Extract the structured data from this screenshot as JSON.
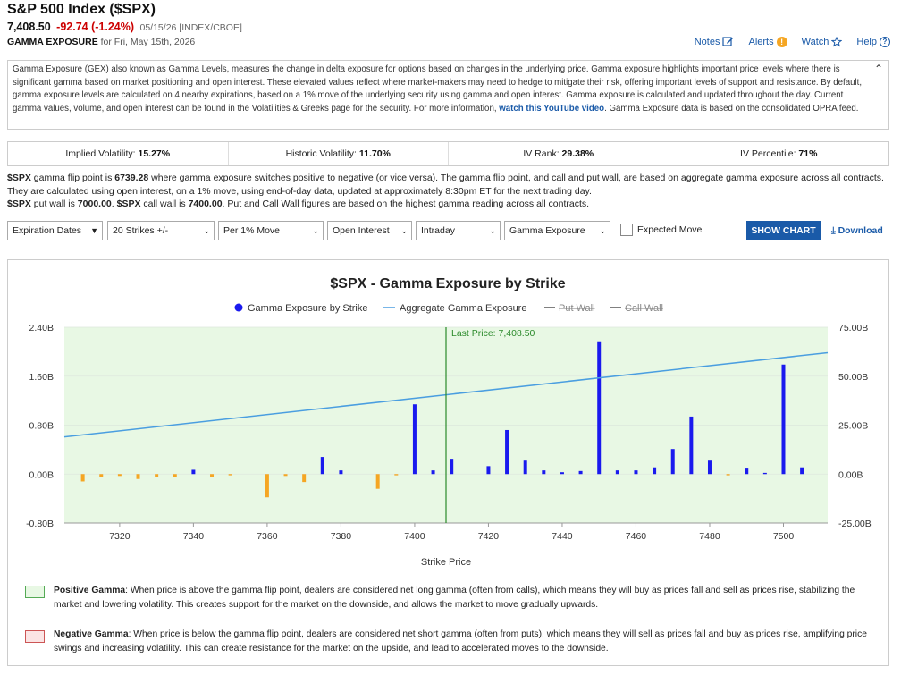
{
  "header": {
    "title": "S&P 500 Index ($SPX)",
    "price": "7,408.50",
    "change": "-92.74 (-1.24%)",
    "meta": "05/15/26 [INDEX/CBOE]",
    "subtitle_bold": "GAMMA EXPOSURE",
    "subtitle_rest": " for Fri, May 15th, 2026"
  },
  "links": {
    "notes": "Notes",
    "alerts": "Alerts",
    "watch": "Watch",
    "help": "Help"
  },
  "description": {
    "text1": "Gamma Exposure (GEX) also known as Gamma Levels, measures the change in delta exposure for options based on changes in the underlying price. Gamma exposure highlights important price levels where there is significant gamma based on market positioning and open interest. These elevated values reflect where market-makers may need to hedge to mitigate their risk, offering important levels of support and resistance. By default, gamma exposure levels are calculated on 4 nearby expirations, based on a 1% move of the underlying security using gamma and open interest. Gamma exposure is calculated and updated throughout the day. Current gamma values, volume, and open interest can be found in the Volatilities & Greeks page for the security. For more information, ",
    "link": "watch this YouTube video",
    "text2": ". Gamma Exposure data is based on the consolidated OPRA feed."
  },
  "vol": {
    "iv_label": "Implied Volatility: ",
    "iv": "15.27%",
    "hv_label": "Historic Volatility: ",
    "hv": "11.70%",
    "ivr_label": "IV Rank: ",
    "ivr": "29.38%",
    "ivp_label": "IV Percentile: ",
    "ivp": "71%"
  },
  "flip": {
    "sym1": "$SPX",
    "t1": " gamma flip point is ",
    "flip_val": "6739.28",
    "t2": " where gamma exposure switches positive to negative (or vice versa). The gamma flip point, and call and put wall, are based on aggregate gamma exposure across all contracts. They are calculated using open interest, on a 1% move, using end-of-day data, updated at approximately 8:30pm ET for the next trading day.",
    "sym2": "$SPX",
    "t3": " put wall is ",
    "put_wall": "7000.00",
    "t4": ". ",
    "sym3": "$SPX",
    "t5": " call wall is ",
    "call_wall": "7400.00",
    "t6": ". Put and Call Wall figures are based on the highest gamma reading across all contracts."
  },
  "controls": {
    "expiration": "Expiration Dates",
    "strikes": "20 Strikes +/-",
    "move": "Per 1% Move",
    "oi": "Open Interest",
    "period": "Intraday",
    "metric": "Gamma Exposure",
    "expected_move": "Expected Move",
    "show_chart": "SHOW CHART",
    "download": "Download"
  },
  "chart_data": {
    "type": "bar",
    "title": "$SPX - Gamma Exposure by Strike",
    "xlabel": "Strike Price",
    "legend": [
      "Gamma Exposure by Strike",
      "Aggregate Gamma Exposure",
      "Put Wall",
      "Call Wall"
    ],
    "legend_placement": "top-center",
    "last_price_label": "Last Price: 7,408.50",
    "last_price": 7408.5,
    "xlim": [
      7305,
      7512
    ],
    "x_ticks": [
      "7320",
      "7340",
      "7360",
      "7380",
      "7400",
      "7420",
      "7440",
      "7460",
      "7480",
      "7500"
    ],
    "y_left_ticks": [
      "2.40B",
      "1.60B",
      "0.80B",
      "0.00B",
      "-0.80B"
    ],
    "y_right_ticks": [
      "75.00B",
      "50.00B",
      "25.00B",
      "0.00B",
      "-25.00B"
    ],
    "ylim_left": [
      -0.8,
      2.4
    ],
    "ylim_right": [
      -25,
      75
    ],
    "strikes": [
      7310,
      7315,
      7320,
      7325,
      7330,
      7335,
      7340,
      7345,
      7350,
      7355,
      7360,
      7365,
      7370,
      7375,
      7380,
      7385,
      7390,
      7395,
      7400,
      7405,
      7410,
      7415,
      7420,
      7425,
      7430,
      7435,
      7440,
      7445,
      7450,
      7455,
      7460,
      7465,
      7470,
      7475,
      7480,
      7485,
      7490,
      7495,
      7500,
      7505
    ],
    "gamma": [
      -0.12,
      -0.05,
      -0.03,
      -0.08,
      -0.04,
      -0.05,
      0.07,
      -0.05,
      -0.02,
      0,
      -0.38,
      -0.03,
      -0.13,
      0.28,
      0.06,
      0,
      -0.24,
      -0.02,
      1.14,
      0.06,
      0.25,
      0,
      0.13,
      0.72,
      0.22,
      0.06,
      0.03,
      0.05,
      2.17,
      0.06,
      0.06,
      0.11,
      0.41,
      0.94,
      0.22,
      -0.02,
      0.09,
      0.02,
      1.79,
      0.11
    ],
    "aggregate": {
      "x": [
        7305,
        7512
      ],
      "y": [
        19,
        62
      ]
    },
    "colors": {
      "positive": "#1a1aee",
      "negative": "#f5a623",
      "line": "#4a9ee0",
      "last_price": "#2a8a2a",
      "bg_positive": "#e8f8e4"
    }
  },
  "notes": {
    "pos_bold": "Positive Gamma",
    "pos_text": ": When price is above the gamma flip point, dealers are considered net long gamma (often from calls), which means they will buy as prices fall and sell as prices rise, stabilizing the market and lowering volatility. This creates support for the market on the downside, and allows the market to move gradually upwards.",
    "neg_bold": "Negative Gamma",
    "neg_text": ": When price is below the gamma flip point, dealers are considered net short gamma (often from puts), which means they will sell as prices fall and buy as prices rise, amplifying price swings and increasing volatility. This can create resistance for the market on the upside, and lead to accelerated moves to the downside."
  }
}
